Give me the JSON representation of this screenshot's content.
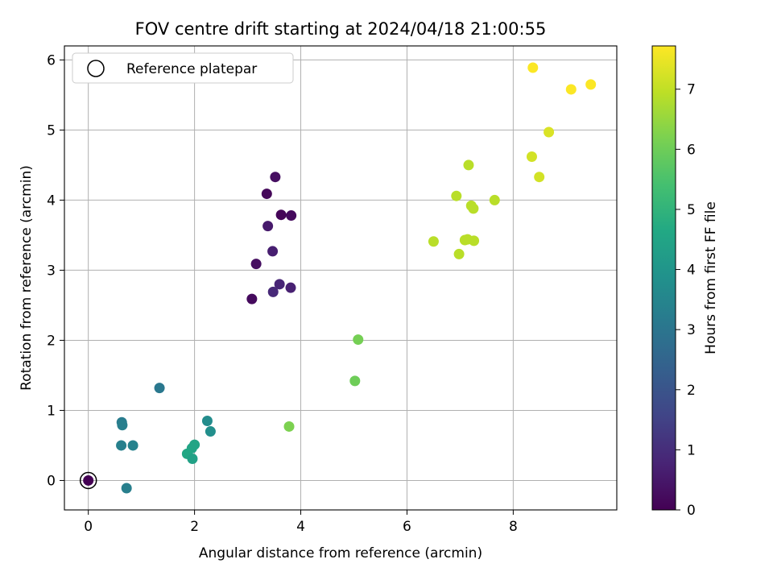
{
  "chart_data": {
    "type": "scatter",
    "title": "FOV centre drift starting at 2024/04/18 21:00:55",
    "xlabel": "Angular distance from reference (arcmin)",
    "ylabel": "Rotation from reference (arcmin)",
    "xlim": [
      -0.45,
      9.95
    ],
    "ylim": [
      -0.42,
      6.2
    ],
    "x_ticks": [
      0,
      2,
      4,
      6,
      8
    ],
    "y_ticks": [
      0,
      1,
      2,
      3,
      4,
      5,
      6
    ],
    "grid": true,
    "legend": {
      "position": "top-left",
      "entries": [
        "Reference platepar"
      ]
    },
    "reference_point": {
      "x": 0,
      "y": 0
    },
    "colorbar": {
      "label": "Hours from first FF file",
      "colormap": "viridis",
      "range": [
        0,
        7.72
      ],
      "ticks": [
        0,
        1,
        2,
        3,
        4,
        5,
        6,
        7
      ]
    },
    "points": [
      {
        "x": 0.0,
        "y": 0.0,
        "c": 0.0
      },
      {
        "x": 3.08,
        "y": 2.59,
        "c": 0.2
      },
      {
        "x": 3.16,
        "y": 3.09,
        "c": 0.3
      },
      {
        "x": 3.36,
        "y": 4.09,
        "c": 0.15
      },
      {
        "x": 3.52,
        "y": 4.33,
        "c": 0.3
      },
      {
        "x": 3.63,
        "y": 3.79,
        "c": 0.1
      },
      {
        "x": 3.82,
        "y": 3.78,
        "c": 0.2
      },
      {
        "x": 3.38,
        "y": 3.63,
        "c": 0.55
      },
      {
        "x": 3.47,
        "y": 3.27,
        "c": 0.65
      },
      {
        "x": 3.6,
        "y": 2.8,
        "c": 0.8
      },
      {
        "x": 3.48,
        "y": 2.69,
        "c": 0.9
      },
      {
        "x": 3.81,
        "y": 2.75,
        "c": 0.7
      },
      {
        "x": 1.34,
        "y": 1.32,
        "c": 3.1
      },
      {
        "x": 0.63,
        "y": 0.83,
        "c": 3.2
      },
      {
        "x": 0.64,
        "y": 0.79,
        "c": 3.3
      },
      {
        "x": 0.62,
        "y": 0.5,
        "c": 3.35
      },
      {
        "x": 0.84,
        "y": 0.5,
        "c": 3.4
      },
      {
        "x": 0.72,
        "y": -0.11,
        "c": 3.3
      },
      {
        "x": 2.24,
        "y": 0.85,
        "c": 3.7
      },
      {
        "x": 2.3,
        "y": 0.7,
        "c": 3.8
      },
      {
        "x": 2.0,
        "y": 0.51,
        "c": 4.5
      },
      {
        "x": 1.95,
        "y": 0.46,
        "c": 4.5
      },
      {
        "x": 1.86,
        "y": 0.38,
        "c": 4.6
      },
      {
        "x": 1.96,
        "y": 0.31,
        "c": 4.4
      },
      {
        "x": 5.08,
        "y": 2.01,
        "c": 6.1
      },
      {
        "x": 5.02,
        "y": 1.42,
        "c": 6.0
      },
      {
        "x": 3.78,
        "y": 0.77,
        "c": 6.2
      },
      {
        "x": 6.5,
        "y": 3.41,
        "c": 6.9
      },
      {
        "x": 6.93,
        "y": 4.06,
        "c": 6.9
      },
      {
        "x": 6.98,
        "y": 3.23,
        "c": 6.9
      },
      {
        "x": 7.09,
        "y": 3.43,
        "c": 6.9
      },
      {
        "x": 7.14,
        "y": 3.44,
        "c": 6.9
      },
      {
        "x": 7.26,
        "y": 3.42,
        "c": 6.9
      },
      {
        "x": 7.16,
        "y": 4.5,
        "c": 6.9
      },
      {
        "x": 7.21,
        "y": 3.92,
        "c": 6.9
      },
      {
        "x": 7.25,
        "y": 3.88,
        "c": 6.9
      },
      {
        "x": 7.65,
        "y": 4.0,
        "c": 6.9
      },
      {
        "x": 8.35,
        "y": 4.62,
        "c": 7.2
      },
      {
        "x": 8.49,
        "y": 4.33,
        "c": 7.2
      },
      {
        "x": 8.67,
        "y": 4.97,
        "c": 7.3
      },
      {
        "x": 8.37,
        "y": 5.89,
        "c": 7.7
      },
      {
        "x": 9.09,
        "y": 5.58,
        "c": 7.7
      },
      {
        "x": 9.46,
        "y": 5.65,
        "c": 7.7
      }
    ]
  }
}
